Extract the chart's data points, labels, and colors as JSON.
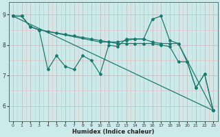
{
  "xlabel": "Humidex (Indice chaleur)",
  "ylabel": "",
  "xlim": [
    -0.5,
    23.5
  ],
  "ylim": [
    5.6,
    9.4
  ],
  "yticks": [
    6,
    7,
    8,
    9
  ],
  "xticks": [
    0,
    1,
    2,
    3,
    4,
    5,
    6,
    7,
    8,
    9,
    10,
    11,
    12,
    13,
    14,
    15,
    16,
    17,
    18,
    19,
    20,
    21,
    22,
    23
  ],
  "bg_color": "#cdeaea",
  "line_color": "#1a7a6e",
  "grid_major_color": "#b8d8d8",
  "grid_minor_color": "#d0e8e8",
  "lines": [
    {
      "x": [
        0,
        1,
        2,
        3,
        4,
        5,
        6,
        7,
        8,
        9,
        10,
        11,
        12,
        13,
        14,
        15,
        16,
        17,
        18,
        19,
        20,
        21,
        22,
        23
      ],
      "y": [
        8.95,
        8.95,
        8.6,
        8.5,
        7.2,
        7.65,
        7.3,
        7.2,
        7.65,
        7.5,
        7.05,
        8.0,
        7.95,
        8.2,
        8.2,
        8.2,
        8.85,
        8.95,
        8.15,
        8.05,
        7.45,
        6.6,
        7.05,
        5.85
      ]
    },
    {
      "x": [
        0,
        23
      ],
      "y": [
        8.95,
        5.85
      ]
    },
    {
      "x": [
        0,
        1,
        2,
        3,
        10,
        11,
        12,
        13,
        14,
        15,
        16,
        17,
        18,
        19,
        23
      ],
      "y": [
        8.95,
        8.95,
        8.6,
        8.5,
        8.1,
        8.1,
        8.1,
        8.15,
        8.2,
        8.2,
        8.1,
        8.05,
        8.05,
        8.05,
        5.85
      ]
    },
    {
      "x": [
        0,
        1,
        2,
        3,
        4,
        5,
        6,
        7,
        8,
        9,
        10,
        11,
        12,
        13,
        14,
        15,
        16,
        17,
        18,
        19,
        20,
        21,
        22,
        23
      ],
      "y": [
        8.95,
        8.95,
        8.6,
        8.5,
        8.45,
        8.4,
        8.35,
        8.3,
        8.25,
        8.2,
        8.15,
        8.1,
        8.05,
        8.05,
        8.05,
        8.05,
        8.05,
        8.0,
        7.95,
        7.45,
        7.45,
        6.6,
        7.05,
        5.85
      ]
    }
  ]
}
